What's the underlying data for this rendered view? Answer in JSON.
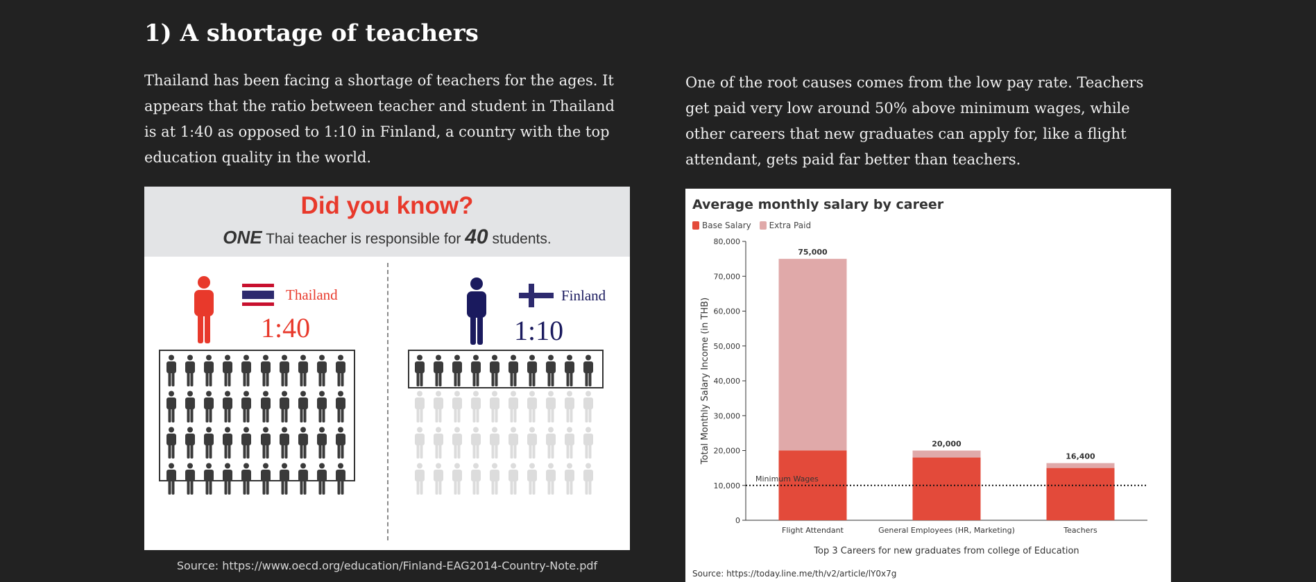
{
  "heading": "1) A shortage of teachers",
  "paragraph_left": "Thailand has been facing a shortage of teachers for the ages. It appears that the ratio between teacher and student in Thailand is at 1:40 as opposed to 1:10 in Finland, a country with the top education quality in the world.",
  "paragraph_right": "One of the root causes comes from the low pay rate. Teachers get paid very low around 50% above minimum wages, while other careers that new graduates can apply for, like a flight attendant, gets paid far better than teachers.",
  "infographic": {
    "title": "Did you know?",
    "subtitle_one": "ONE",
    "subtitle_mid": " Thai teacher is responsible for ",
    "subtitle_num": "40",
    "subtitle_end": " students.",
    "thailand_label": "Thailand",
    "thailand_ratio": "1:40",
    "finland_label": "Finland",
    "finland_ratio": "1:10",
    "colors": {
      "thailand": "#e8392b",
      "finland": "#1a1a5e",
      "student_dark": "#3a3a3a",
      "student_light": "#dcdcdc"
    }
  },
  "source_left": "Source: https://www.oecd.org/education/Finland-EAG2014-Country-Note.pdf",
  "chart_data": {
    "type": "bar",
    "title": "Average monthly salary by career",
    "xlabel": "Top 3 Careers for new graduates from college of Education",
    "ylabel": "Total Monthly Salary Income (in THB)",
    "ylim": [
      0,
      80000
    ],
    "yticks": [
      "0",
      "10,000",
      "20,000",
      "30,000",
      "40,000",
      "50,000",
      "60,000",
      "70,000",
      "80,000"
    ],
    "categories": [
      "Flight Attendant",
      "General Employees (HR, Marketing)",
      "Teachers"
    ],
    "series": [
      {
        "name": "Base Salary",
        "values": [
          20000,
          18000,
          15000
        ],
        "color": "#e34a3a"
      },
      {
        "name": "Extra Paid",
        "values": [
          55000,
          2000,
          1400
        ],
        "color": "#e0a9a9"
      }
    ],
    "totals": [
      "75,000",
      "20,000",
      "16,400"
    ],
    "reference_line": {
      "label": "Minimum Wages",
      "value": 10000
    },
    "legend_position": "top-left",
    "grid": false
  },
  "chart_source": "Source: https://today.line.me/th/v2/article/lY0x7g"
}
